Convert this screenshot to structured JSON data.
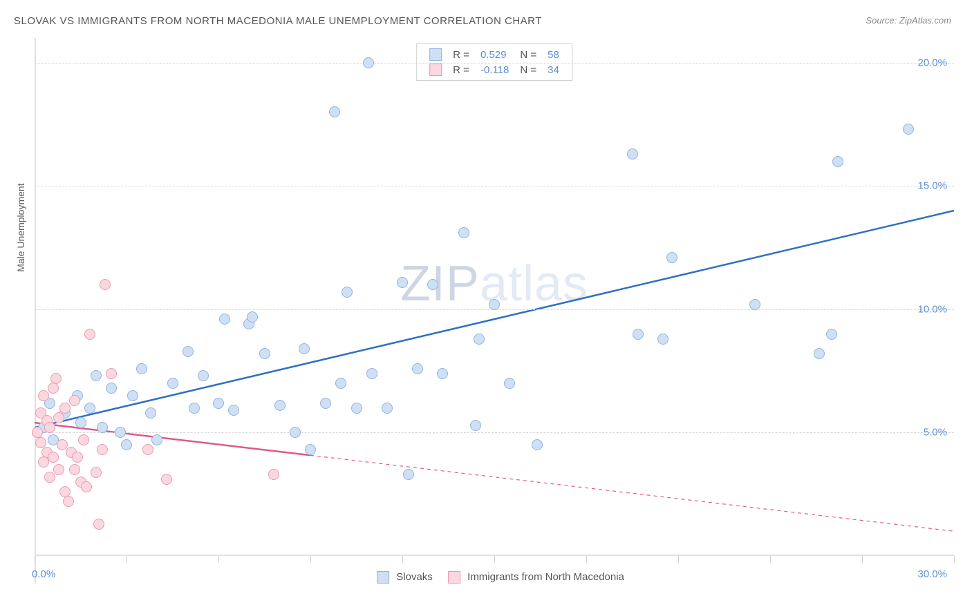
{
  "title": "SLOVAK VS IMMIGRANTS FROM NORTH MACEDONIA MALE UNEMPLOYMENT CORRELATION CHART",
  "source_label": "Source:",
  "source_value": "ZipAtlas.com",
  "watermark": {
    "prefix": "ZIP",
    "suffix": "atlas"
  },
  "y_axis_label": "Male Unemployment",
  "chart": {
    "type": "scatter",
    "background_color": "#ffffff",
    "grid_color": "#d8d8d8",
    "xlim": [
      0,
      30
    ],
    "ylim": [
      0,
      21
    ],
    "y_ticks": [
      {
        "v": 5,
        "label": "5.0%"
      },
      {
        "v": 10,
        "label": "10.0%"
      },
      {
        "v": 15,
        "label": "15.0%"
      },
      {
        "v": 20,
        "label": "20.0%"
      }
    ],
    "x_zero_label": "0.0%",
    "x_max_label": "30.0%",
    "x_tick_positions": [
      0,
      3,
      6,
      9,
      12,
      15,
      18,
      21,
      24,
      27,
      30
    ],
    "series": [
      {
        "id": "slovaks",
        "label": "Slovaks",
        "fill": "#cfe0f5",
        "stroke": "#8fb4e0",
        "line_color": "#2f6fc4",
        "line_width": 2.5,
        "r_label": "R =",
        "r_value": "0.529",
        "n_label": "N =",
        "n_value": "58",
        "trend": {
          "x1": 0,
          "y1": 5.2,
          "x2": 30,
          "y2": 14.0,
          "dash_after_x": 30
        },
        "points": [
          [
            0.3,
            5.2
          ],
          [
            0.5,
            6.2
          ],
          [
            0.6,
            4.7
          ],
          [
            1.0,
            5.8
          ],
          [
            1.4,
            6.5
          ],
          [
            1.5,
            5.4
          ],
          [
            1.8,
            6.0
          ],
          [
            2.0,
            7.3
          ],
          [
            2.2,
            5.2
          ],
          [
            2.5,
            6.8
          ],
          [
            2.8,
            5.0
          ],
          [
            3.0,
            4.5
          ],
          [
            3.2,
            6.5
          ],
          [
            3.5,
            7.6
          ],
          [
            3.8,
            5.8
          ],
          [
            4.0,
            4.7
          ],
          [
            4.5,
            7.0
          ],
          [
            5.0,
            8.3
          ],
          [
            5.2,
            6.0
          ],
          [
            5.5,
            7.3
          ],
          [
            6.0,
            6.2
          ],
          [
            6.2,
            9.6
          ],
          [
            6.5,
            5.9
          ],
          [
            7.0,
            9.4
          ],
          [
            7.1,
            9.7
          ],
          [
            7.5,
            8.2
          ],
          [
            8.0,
            6.1
          ],
          [
            8.5,
            5.0
          ],
          [
            8.8,
            8.4
          ],
          [
            9.0,
            4.3
          ],
          [
            9.5,
            6.2
          ],
          [
            9.8,
            18.0
          ],
          [
            10.0,
            7.0
          ],
          [
            10.2,
            10.7
          ],
          [
            10.5,
            6.0
          ],
          [
            10.9,
            20.0
          ],
          [
            11.0,
            7.4
          ],
          [
            11.5,
            6.0
          ],
          [
            12.0,
            11.1
          ],
          [
            12.2,
            3.3
          ],
          [
            12.5,
            7.6
          ],
          [
            13.0,
            11.0
          ],
          [
            13.3,
            7.4
          ],
          [
            14.0,
            13.1
          ],
          [
            14.4,
            5.3
          ],
          [
            14.5,
            8.8
          ],
          [
            15.0,
            10.2
          ],
          [
            15.5,
            7.0
          ],
          [
            16.4,
            4.5
          ],
          [
            19.5,
            16.3
          ],
          [
            19.7,
            9.0
          ],
          [
            20.5,
            8.8
          ],
          [
            20.8,
            12.1
          ],
          [
            23.5,
            10.2
          ],
          [
            25.6,
            8.2
          ],
          [
            26.0,
            9.0
          ],
          [
            26.2,
            16.0
          ],
          [
            28.5,
            17.3
          ]
        ]
      },
      {
        "id": "macedonia",
        "label": "Immigrants from North Macedonia",
        "fill": "#fbd7df",
        "stroke": "#e99ab0",
        "line_color": "#e05a84",
        "line_width": 2.5,
        "r_label": "R =",
        "r_value": "-0.118",
        "n_label": "N =",
        "n_value": "34",
        "trend": {
          "x1": 0,
          "y1": 5.4,
          "x2": 30,
          "y2": 1.0,
          "dash_after_x": 9
        },
        "points": [
          [
            0.1,
            5.0
          ],
          [
            0.2,
            5.8
          ],
          [
            0.2,
            4.6
          ],
          [
            0.3,
            6.5
          ],
          [
            0.3,
            3.8
          ],
          [
            0.4,
            4.2
          ],
          [
            0.4,
            5.5
          ],
          [
            0.5,
            3.2
          ],
          [
            0.5,
            5.2
          ],
          [
            0.6,
            6.8
          ],
          [
            0.6,
            4.0
          ],
          [
            0.7,
            7.2
          ],
          [
            0.8,
            5.6
          ],
          [
            0.8,
            3.5
          ],
          [
            0.9,
            4.5
          ],
          [
            1.0,
            6.0
          ],
          [
            1.0,
            2.6
          ],
          [
            1.1,
            2.2
          ],
          [
            1.2,
            4.2
          ],
          [
            1.3,
            3.5
          ],
          [
            1.3,
            6.3
          ],
          [
            1.4,
            4.0
          ],
          [
            1.5,
            3.0
          ],
          [
            1.6,
            4.7
          ],
          [
            1.7,
            2.8
          ],
          [
            1.8,
            9.0
          ],
          [
            2.0,
            3.4
          ],
          [
            2.1,
            1.3
          ],
          [
            2.2,
            4.3
          ],
          [
            2.3,
            11.0
          ],
          [
            2.5,
            7.4
          ],
          [
            3.7,
            4.3
          ],
          [
            4.3,
            3.1
          ],
          [
            7.8,
            3.3
          ]
        ]
      }
    ]
  }
}
